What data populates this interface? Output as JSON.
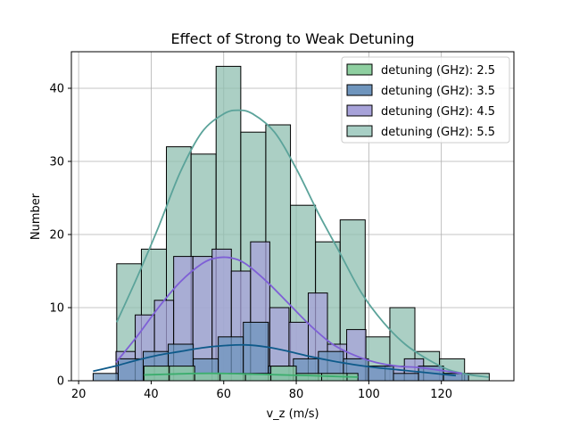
{
  "chart_data": {
    "type": "bar",
    "subtype": "histogram-with-kde",
    "title": "Effect of Strong to Weak Detuning",
    "xlabel": "v_z (m/s)",
    "ylabel": "Number",
    "xlim": [
      18,
      140
    ],
    "ylim": [
      0,
      45
    ],
    "xticks": [
      20,
      40,
      60,
      80,
      100,
      120
    ],
    "yticks": [
      0,
      10,
      20,
      30,
      40
    ],
    "grid": true,
    "legend_position": "top-right",
    "series": [
      {
        "name": "detuning (GHz): 5.5",
        "color": "#8fbfb0",
        "line_color": "#5ba39a",
        "bins": [
          {
            "x0": 30.5,
            "x1": 37.3,
            "count": 16
          },
          {
            "x0": 37.3,
            "x1": 44.2,
            "count": 18
          },
          {
            "x0": 44.2,
            "x1": 51.0,
            "count": 32
          },
          {
            "x0": 51.0,
            "x1": 57.9,
            "count": 31
          },
          {
            "x0": 57.9,
            "x1": 64.7,
            "count": 43
          },
          {
            "x0": 64.7,
            "x1": 71.6,
            "count": 34
          },
          {
            "x0": 71.6,
            "x1": 78.4,
            "count": 35
          },
          {
            "x0": 78.4,
            "x1": 85.3,
            "count": 24
          },
          {
            "x0": 85.3,
            "x1": 92.1,
            "count": 19
          },
          {
            "x0": 92.1,
            "x1": 99.0,
            "count": 22
          },
          {
            "x0": 99.0,
            "x1": 105.8,
            "count": 6
          },
          {
            "x0": 105.8,
            "x1": 112.7,
            "count": 10
          },
          {
            "x0": 112.7,
            "x1": 119.5,
            "count": 4
          },
          {
            "x0": 119.5,
            "x1": 126.4,
            "count": 3
          },
          {
            "x0": 126.4,
            "x1": 133.2,
            "count": 1
          }
        ],
        "kde": [
          [
            30.5,
            8
          ],
          [
            36,
            14
          ],
          [
            42,
            21
          ],
          [
            48,
            28.5
          ],
          [
            54,
            34
          ],
          [
            60,
            36.5
          ],
          [
            64,
            37
          ],
          [
            68,
            36.5
          ],
          [
            74,
            34
          ],
          [
            80,
            29
          ],
          [
            86,
            23
          ],
          [
            92,
            17.5
          ],
          [
            98,
            12
          ],
          [
            104,
            8
          ],
          [
            110,
            5
          ],
          [
            116,
            3
          ],
          [
            122,
            1.5
          ],
          [
            128,
            0.8
          ],
          [
            133,
            0.5
          ]
        ]
      },
      {
        "name": "detuning (GHz): 4.5",
        "color": "#a7a2d9",
        "line_color": "#7e5fd6",
        "bins": [
          {
            "x0": 30.3,
            "x1": 35.6,
            "count": 4
          },
          {
            "x0": 35.6,
            "x1": 40.9,
            "count": 9
          },
          {
            "x0": 40.9,
            "x1": 46.2,
            "count": 11
          },
          {
            "x0": 46.2,
            "x1": 51.5,
            "count": 17
          },
          {
            "x0": 51.5,
            "x1": 56.8,
            "count": 17
          },
          {
            "x0": 56.8,
            "x1": 62.1,
            "count": 18
          },
          {
            "x0": 62.1,
            "x1": 67.4,
            "count": 15
          },
          {
            "x0": 67.4,
            "x1": 72.7,
            "count": 19
          },
          {
            "x0": 72.7,
            "x1": 78.0,
            "count": 10
          },
          {
            "x0": 78.0,
            "x1": 83.3,
            "count": 8
          },
          {
            "x0": 83.3,
            "x1": 88.6,
            "count": 12
          },
          {
            "x0": 88.6,
            "x1": 93.9,
            "count": 5
          },
          {
            "x0": 93.9,
            "x1": 99.2,
            "count": 7
          },
          {
            "x0": 99.2,
            "x1": 104.5,
            "count": 2
          },
          {
            "x0": 104.5,
            "x1": 109.8,
            "count": 2
          },
          {
            "x0": 109.8,
            "x1": 115.1,
            "count": 3
          },
          {
            "x0": 115.1,
            "x1": 120.4,
            "count": 2
          },
          {
            "x0": 120.4,
            "x1": 125.7,
            "count": 1
          }
        ],
        "kde": [
          [
            30.3,
            2.5
          ],
          [
            36,
            6
          ],
          [
            42,
            10
          ],
          [
            48,
            13.5
          ],
          [
            54,
            16
          ],
          [
            58,
            16.8
          ],
          [
            62,
            16.8
          ],
          [
            66,
            16
          ],
          [
            72,
            13.5
          ],
          [
            78,
            10.5
          ],
          [
            84,
            7.5
          ],
          [
            90,
            5
          ],
          [
            96,
            3.5
          ],
          [
            102,
            2.5
          ],
          [
            108,
            2
          ],
          [
            114,
            1.8
          ],
          [
            120,
            1.4
          ],
          [
            125.7,
            1
          ]
        ]
      },
      {
        "name": "detuning (GHz): 3.5",
        "color": "#6f95bd",
        "line_color": "#0e5a8a",
        "bins": [
          {
            "x0": 24.0,
            "x1": 30.9,
            "count": 1
          },
          {
            "x0": 30.9,
            "x1": 37.8,
            "count": 3
          },
          {
            "x0": 37.8,
            "x1": 44.7,
            "count": 4
          },
          {
            "x0": 44.7,
            "x1": 51.6,
            "count": 5
          },
          {
            "x0": 51.6,
            "x1": 58.5,
            "count": 3
          },
          {
            "x0": 58.5,
            "x1": 65.4,
            "count": 6
          },
          {
            "x0": 65.4,
            "x1": 72.3,
            "count": 8
          },
          {
            "x0": 72.3,
            "x1": 79.2,
            "count": 2
          },
          {
            "x0": 79.2,
            "x1": 86.1,
            "count": 3
          },
          {
            "x0": 86.1,
            "x1": 93.0,
            "count": 4
          },
          {
            "x0": 93.0,
            "x1": 99.9,
            "count": 3
          },
          {
            "x0": 99.9,
            "x1": 106.8,
            "count": 2
          },
          {
            "x0": 106.8,
            "x1": 113.7,
            "count": 1
          },
          {
            "x0": 113.7,
            "x1": 120.6,
            "count": 2
          },
          {
            "x0": 120.6,
            "x1": 127.5,
            "count": 1
          }
        ],
        "kde": [
          [
            24,
            1.3
          ],
          [
            30,
            2
          ],
          [
            36,
            2.8
          ],
          [
            42,
            3.5
          ],
          [
            48,
            4
          ],
          [
            54,
            4.5
          ],
          [
            60,
            4.8
          ],
          [
            66,
            4.9
          ],
          [
            72,
            4.6
          ],
          [
            78,
            4
          ],
          [
            84,
            3.3
          ],
          [
            90,
            2.7
          ],
          [
            96,
            2.2
          ],
          [
            102,
            1.8
          ],
          [
            108,
            1.5
          ],
          [
            114,
            1.2
          ],
          [
            120,
            0.9
          ],
          [
            124,
            0.7
          ]
        ]
      },
      {
        "name": "detuning (GHz): 2.5",
        "color": "#8ecfa0",
        "line_color": "#3cae6e",
        "bins": [
          {
            "x0": 38.0,
            "x1": 45.0,
            "count": 2
          },
          {
            "x0": 45.0,
            "x1": 52.0,
            "count": 2
          },
          {
            "x0": 52.0,
            "x1": 59.0,
            "count": 1
          },
          {
            "x0": 59.0,
            "x1": 66.0,
            "count": 1
          },
          {
            "x0": 66.0,
            "x1": 73.0,
            "count": 1
          },
          {
            "x0": 73.0,
            "x1": 80.0,
            "count": 2
          },
          {
            "x0": 80.0,
            "x1": 87.0,
            "count": 1
          },
          {
            "x0": 87.0,
            "x1": 94.0,
            "count": 1
          },
          {
            "x0": 94.0,
            "x1": 97.0,
            "count": 1
          }
        ],
        "kde": [
          [
            38,
            0.8
          ],
          [
            45,
            0.9
          ],
          [
            52,
            1.0
          ],
          [
            60,
            1.0
          ],
          [
            68,
            0.9
          ],
          [
            76,
            0.8
          ],
          [
            84,
            0.7
          ],
          [
            90,
            0.6
          ],
          [
            97,
            0.5
          ]
        ]
      }
    ],
    "legend": [
      {
        "label": "detuning (GHz): 2.5",
        "color": "#8ecfa0"
      },
      {
        "label": "detuning (GHz): 3.5",
        "color": "#6f95bd"
      },
      {
        "label": "detuning (GHz): 4.5",
        "color": "#a7a2d9"
      },
      {
        "label": "detuning (GHz): 5.5",
        "color": "#a8cfc5"
      }
    ]
  }
}
